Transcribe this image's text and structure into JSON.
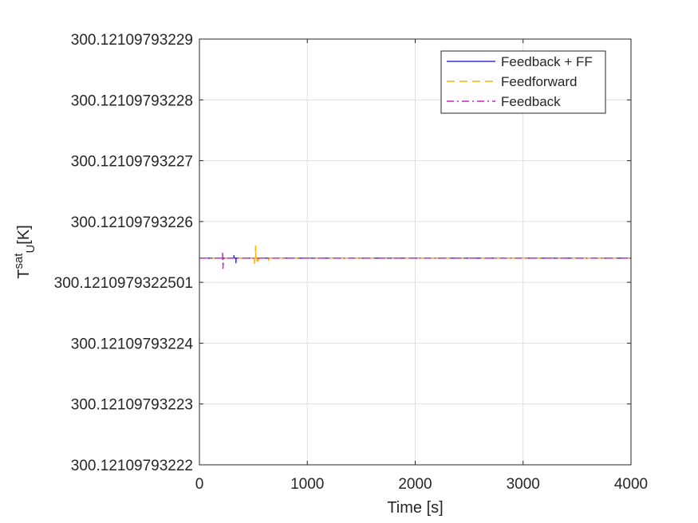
{
  "chart_data": {
    "type": "line",
    "title": "",
    "xlabel": "Time [s]",
    "ylabel": {
      "base": "T",
      "superscript": "sat",
      "subscript": "U",
      "unit": "[K]"
    },
    "xlim": [
      0,
      4000
    ],
    "ylim": [
      300.12109793222,
      300.12109793229
    ],
    "xticks": [
      "0",
      "1000",
      "2000",
      "3000",
      "4000"
    ],
    "yticks": [
      "300.12109793222",
      "300.12109793223",
      "300.12109793224",
      "300.1210979322501",
      "300.12109793226",
      "300.12109793227",
      "300.12109793228",
      "300.12109793229"
    ],
    "grid": true,
    "legend_position": "top-right",
    "baseline": 300.121097932254,
    "series": [
      {
        "name": "Feedback + FF",
        "color": "#3333dd",
        "style": "solid",
        "x": [
          0,
          320,
          320,
          322,
          325,
          338,
          338,
          340,
          343,
          4000
        ],
        "y": [
          300.121097932254,
          300.121097932254,
          300.1210979322545,
          300.121097932254,
          300.121097932254,
          300.121097932254,
          300.1210979322531,
          300.121097932254,
          300.121097932254,
          300.121097932254
        ]
      },
      {
        "name": "Feedforward",
        "color": "#ffb000",
        "style": "dashed",
        "x": [
          0,
          510,
          510,
          513,
          518,
          520,
          520,
          523,
          528,
          532,
          532,
          535,
          540,
          545,
          545,
          548,
          555,
          640,
          640,
          643,
          650,
          4000
        ],
        "y": [
          300.121097932254,
          300.121097932254,
          300.1210979322528,
          300.121097932254,
          300.121097932254,
          300.121097932254,
          300.121097932256,
          300.121097932254,
          300.121097932254,
          300.121097932254,
          300.1210979322532,
          300.121097932254,
          300.121097932254,
          300.121097932254,
          300.1210979322532,
          300.121097932254,
          300.121097932254,
          300.121097932254,
          300.1210979322535,
          300.121097932254,
          300.121097932254,
          300.121097932254
        ]
      },
      {
        "name": "Feedback",
        "color": "#cc22cc",
        "style": "dashdot",
        "x": [
          0,
          215,
          215,
          218,
          222,
          4000
        ],
        "y": [
          300.121097932254,
          300.121097932254,
          300.121097932255,
          300.1210979322522,
          300.121097932254,
          300.121097932254
        ]
      }
    ]
  }
}
